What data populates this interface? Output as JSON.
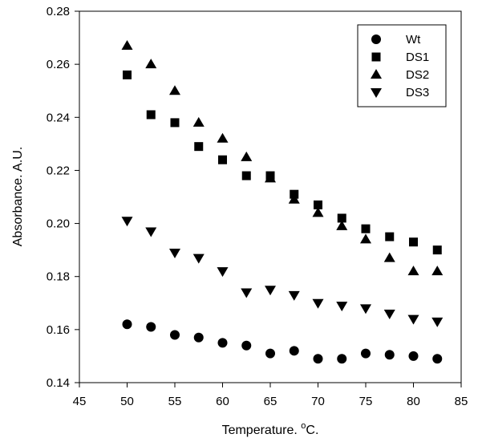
{
  "chart_data": {
    "type": "scatter",
    "title": "",
    "xlabel": "Temperature. ",
    "xlabel_sup": "o",
    "xlabel_suffix": "C.",
    "ylabel": "Absorbance. A.U.",
    "xlim": [
      45,
      85
    ],
    "ylim": [
      0.14,
      0.28
    ],
    "xticks": [
      45,
      50,
      55,
      60,
      65,
      70,
      75,
      80,
      85
    ],
    "yticks": [
      0.14,
      0.16,
      0.18,
      0.2,
      0.22,
      0.24,
      0.26,
      0.28
    ],
    "ytick_labels": [
      "0.14",
      "0.16",
      "0.18",
      "0.20",
      "0.22",
      "0.24",
      "0.26",
      "0.28"
    ],
    "grid": false,
    "legend_position": "top-right",
    "x": [
      50,
      52.5,
      55,
      57.5,
      60,
      62.5,
      65,
      67.5,
      70,
      72.5,
      75,
      77.5,
      80,
      82.5
    ],
    "series": [
      {
        "name": "Wt",
        "marker": "circle",
        "values": [
          0.162,
          0.161,
          0.158,
          0.157,
          0.155,
          0.154,
          0.151,
          0.152,
          0.149,
          0.149,
          0.151,
          0.1505,
          0.15,
          0.149
        ]
      },
      {
        "name": "DS1",
        "marker": "square",
        "values": [
          0.256,
          0.241,
          0.238,
          0.229,
          0.224,
          0.218,
          0.218,
          0.211,
          0.207,
          0.202,
          0.198,
          0.195,
          0.193,
          0.19
        ]
      },
      {
        "name": "DS2",
        "marker": "triangle-up",
        "values": [
          0.267,
          0.26,
          0.25,
          0.238,
          0.232,
          0.225,
          0.217,
          0.209,
          0.204,
          0.199,
          0.194,
          0.187,
          0.182,
          0.182
        ]
      },
      {
        "name": "DS3",
        "marker": "triangle-down",
        "values": [
          0.201,
          0.197,
          0.189,
          0.187,
          0.182,
          0.174,
          0.175,
          0.173,
          0.17,
          0.169,
          0.168,
          0.166,
          0.164,
          0.163
        ]
      }
    ],
    "colors": {
      "marker": "#000000",
      "axis": "#000000",
      "background": "#ffffff"
    }
  }
}
